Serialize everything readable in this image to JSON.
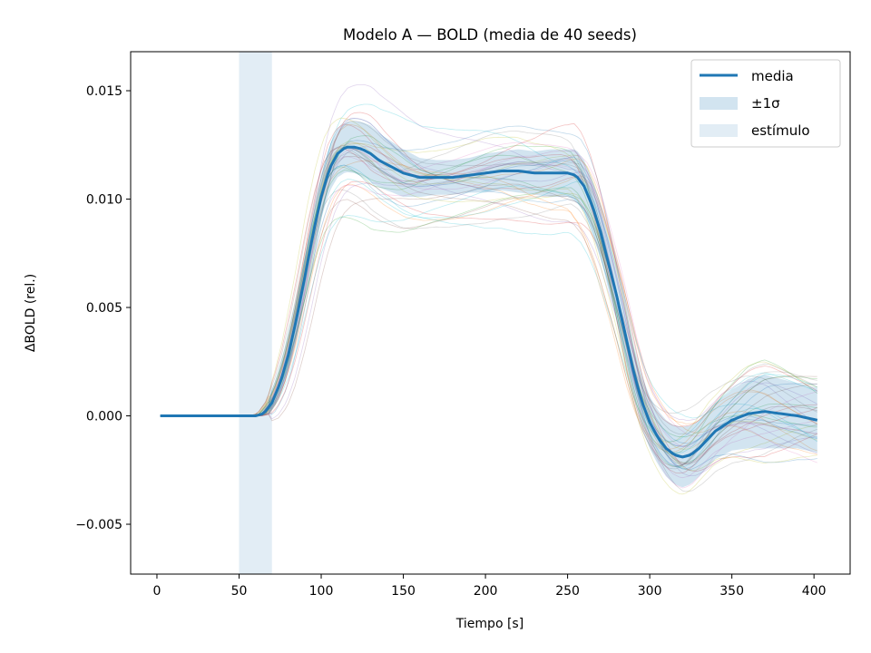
{
  "chart_data": {
    "type": "line",
    "title": "Modelo A — BOLD (media de 40 seeds)",
    "xlabel": "Tiempo [s]",
    "ylabel": "ΔBOLD (rel.)",
    "xlim": [
      -16,
      422
    ],
    "ylim": [
      -0.0073,
      0.0168
    ],
    "xticks": [
      0,
      50,
      100,
      150,
      200,
      250,
      300,
      350,
      400
    ],
    "xtick_labels": [
      "0",
      "50",
      "100",
      "150",
      "200",
      "250",
      "300",
      "350",
      "400"
    ],
    "yticks": [
      -0.005,
      0.0,
      0.005,
      0.01,
      0.015
    ],
    "ytick_labels": [
      "−0.005",
      "0.000",
      "0.005",
      "0.010",
      "0.015"
    ],
    "grid": false,
    "legend_position": "top-right",
    "legend": [
      "media",
      "±1σ",
      "estímulo"
    ],
    "stimulus": {
      "start": 50,
      "end": 70
    },
    "mean_series": {
      "name": "media",
      "color": "#1f77b4",
      "x": [
        2,
        50,
        55,
        60,
        65,
        70,
        75,
        80,
        85,
        90,
        95,
        100,
        105,
        110,
        115,
        120,
        125,
        130,
        135,
        140,
        145,
        150,
        155,
        160,
        165,
        170,
        180,
        190,
        200,
        210,
        220,
        230,
        240,
        250,
        255,
        260,
        265,
        270,
        275,
        280,
        285,
        290,
        295,
        300,
        305,
        310,
        315,
        320,
        325,
        330,
        335,
        340,
        350,
        360,
        370,
        380,
        390,
        402
      ],
      "y": [
        0,
        0,
        0,
        0,
        0.0001,
        0.0006,
        0.0015,
        0.0028,
        0.0045,
        0.0064,
        0.0084,
        0.0101,
        0.0114,
        0.0121,
        0.0124,
        0.0124,
        0.0123,
        0.0121,
        0.0118,
        0.0116,
        0.0114,
        0.0112,
        0.0111,
        0.011,
        0.011,
        0.011,
        0.011,
        0.0111,
        0.0112,
        0.0113,
        0.0113,
        0.0112,
        0.0112,
        0.0112,
        0.0111,
        0.0106,
        0.0097,
        0.0085,
        0.007,
        0.0055,
        0.0038,
        0.0021,
        0.0007,
        -0.0003,
        -0.001,
        -0.0015,
        -0.0018,
        -0.0019,
        -0.0018,
        -0.0015,
        -0.0011,
        -0.0007,
        -0.0002,
        0.0001,
        0.0002,
        0.0001,
        0.0,
        -0.0002
      ]
    },
    "band_sigma": {
      "name": "±1σ",
      "x": [
        70,
        80,
        90,
        100,
        110,
        120,
        130,
        140,
        150,
        160,
        170,
        180,
        190,
        200,
        210,
        220,
        230,
        240,
        250,
        255,
        260,
        270,
        280,
        290,
        300,
        310,
        320,
        330,
        340,
        350,
        360,
        370,
        380,
        390,
        400
      ],
      "sigma": [
        0.0003,
        0.0007,
        0.0009,
        0.001,
        0.0011,
        0.0012,
        0.0013,
        0.0012,
        0.0011,
        0.0009,
        0.0008,
        0.0008,
        0.0008,
        0.0009,
        0.0009,
        0.001,
        0.001,
        0.0011,
        0.0011,
        0.0012,
        0.0012,
        0.0012,
        0.0012,
        0.0012,
        0.0012,
        0.0013,
        0.0014,
        0.0013,
        0.0013,
        0.0014,
        0.0016,
        0.0017,
        0.0016,
        0.0015,
        0.0015
      ]
    },
    "seeds": {
      "count": 40,
      "colors": [
        "#1f77b4",
        "#ff7f0e",
        "#2ca02c",
        "#d62728",
        "#9467bd",
        "#8c564b",
        "#e377c2",
        "#17becf",
        "#bcbd22",
        "#7f7f7f"
      ]
    }
  }
}
